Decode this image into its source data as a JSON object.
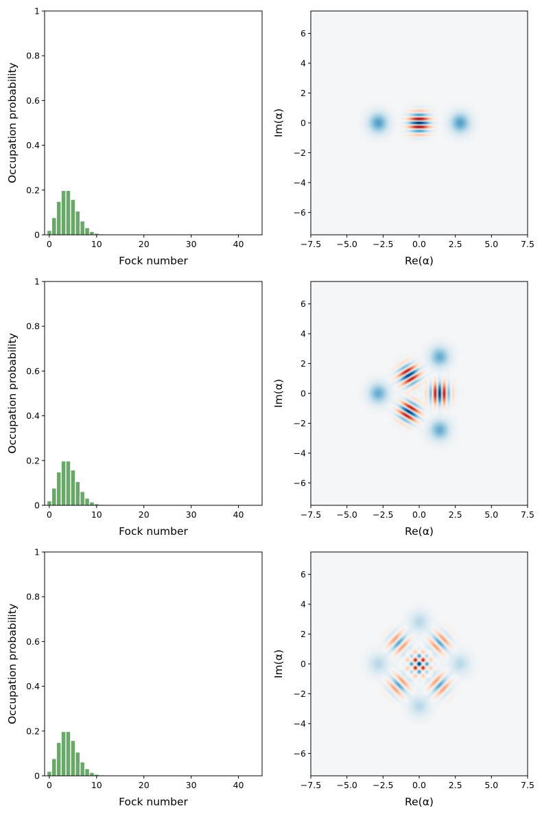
{
  "figure": {
    "rows": 3,
    "cols": 2
  },
  "colors": {
    "bar": "#6aa86a",
    "wigner_negative": "#053061",
    "wigner_positive": "#67001f",
    "wigner_zero": "#f5f6f7"
  },
  "chart_data": [
    {
      "type": "bar",
      "panel": "row1-left",
      "xlabel": "Fock number",
      "ylabel": "Occupation probability",
      "xlim": [
        -1,
        45
      ],
      "ylim": [
        0,
        1.0
      ],
      "xticks": [
        0,
        10,
        20,
        30,
        40
      ],
      "yticks": [
        0.0,
        0.2,
        0.4,
        0.6,
        0.8,
        1.0
      ],
      "categories": [
        0,
        1,
        2,
        3,
        4,
        5,
        6,
        7,
        8,
        9,
        10,
        11,
        12,
        13
      ],
      "values": [
        0.018,
        0.075,
        0.147,
        0.196,
        0.196,
        0.156,
        0.104,
        0.06,
        0.03,
        0.013,
        0.005,
        0.002,
        0.0006,
        0.0002
      ]
    },
    {
      "type": "heatmap",
      "panel": "row1-right",
      "subtype": "wigner-function",
      "xlabel": "Re(α)",
      "ylabel": "Im(α)",
      "xlim": [
        -7.5,
        7.5
      ],
      "ylim": [
        -7.5,
        7.5
      ],
      "xticks": [
        "−7.5",
        "−5.0",
        "−2.5",
        "0.0",
        "2.5",
        "5.0",
        "7.5"
      ],
      "yticks": [
        "−6",
        "−4",
        "−2",
        "0",
        "2",
        "4",
        "6"
      ],
      "state": "two-component cat state",
      "n_components": 2,
      "amplitude": 2.83,
      "phase0_deg": 0,
      "colormap": "RdBu"
    },
    {
      "type": "bar",
      "panel": "row2-left",
      "xlabel": "Fock number",
      "ylabel": "Occupation probability",
      "xlim": [
        -1,
        45
      ],
      "ylim": [
        0,
        1.0
      ],
      "xticks": [
        0,
        10,
        20,
        30,
        40
      ],
      "yticks": [
        0.0,
        0.2,
        0.4,
        0.6,
        0.8,
        1.0
      ],
      "categories": [
        0,
        1,
        2,
        3,
        4,
        5,
        6,
        7,
        8,
        9,
        10,
        11,
        12,
        13
      ],
      "values": [
        0.018,
        0.075,
        0.147,
        0.196,
        0.196,
        0.156,
        0.104,
        0.06,
        0.03,
        0.013,
        0.005,
        0.002,
        0.0006,
        0.0002
      ]
    },
    {
      "type": "heatmap",
      "panel": "row2-right",
      "subtype": "wigner-function",
      "xlabel": "Re(α)",
      "ylabel": "Im(α)",
      "xlim": [
        -7.5,
        7.5
      ],
      "ylim": [
        -7.5,
        7.5
      ],
      "xticks": [
        "−7.5",
        "−5.0",
        "−2.5",
        "0.0",
        "2.5",
        "5.0",
        "7.5"
      ],
      "yticks": [
        "−6",
        "−4",
        "−2",
        "0",
        "2",
        "4",
        "6"
      ],
      "state": "three-component cat state",
      "n_components": 3,
      "amplitude": 2.83,
      "phase0_deg": 60,
      "colormap": "RdBu"
    },
    {
      "type": "bar",
      "panel": "row3-left",
      "xlabel": "Fock number",
      "ylabel": "Occupation probability",
      "xlim": [
        -1,
        45
      ],
      "ylim": [
        0,
        1.0
      ],
      "xticks": [
        0,
        10,
        20,
        30,
        40
      ],
      "yticks": [
        0.0,
        0.2,
        0.4,
        0.6,
        0.8,
        1.0
      ],
      "categories": [
        0,
        1,
        2,
        3,
        4,
        5,
        6,
        7,
        8,
        9,
        10,
        11,
        12,
        13
      ],
      "values": [
        0.018,
        0.075,
        0.147,
        0.196,
        0.196,
        0.156,
        0.104,
        0.06,
        0.03,
        0.013,
        0.005,
        0.002,
        0.0006,
        0.0002
      ]
    },
    {
      "type": "heatmap",
      "panel": "row3-right",
      "subtype": "wigner-function",
      "xlabel": "Re(α)",
      "ylabel": "Im(α)",
      "xlim": [
        -7.5,
        7.5
      ],
      "ylim": [
        -7.5,
        7.5
      ],
      "xticks": [
        "−7.5",
        "−5.0",
        "−2.5",
        "0.0",
        "2.5",
        "5.0",
        "7.5"
      ],
      "yticks": [
        "−6",
        "−4",
        "−2",
        "0",
        "2",
        "4",
        "6"
      ],
      "state": "four-component cat state",
      "n_components": 4,
      "amplitude": 2.83,
      "phase0_deg": 0,
      "colormap": "RdBu"
    }
  ]
}
